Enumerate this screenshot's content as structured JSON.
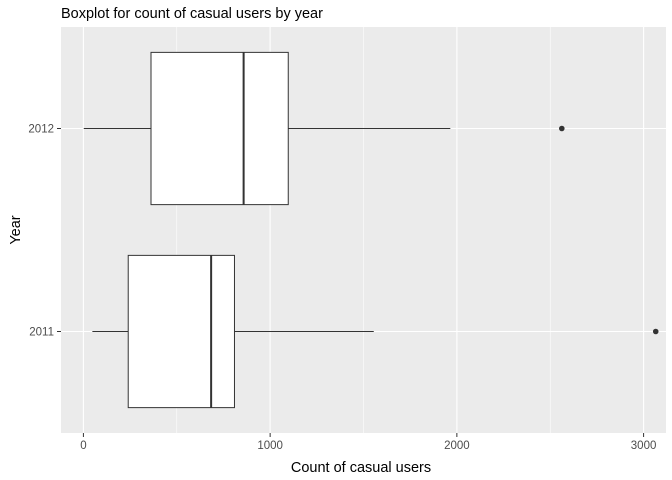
{
  "chart_data": {
    "type": "boxplot",
    "orientation": "horizontal",
    "title": "Boxplot for count of casual users by year",
    "xlabel": "Count of casual users",
    "ylabel": "Year",
    "xlim": [
      -120,
      3120
    ],
    "xticks": [
      0,
      1000,
      2000,
      3000
    ],
    "xtick_labels": [
      "0",
      "1000",
      "2000",
      "3000"
    ],
    "grid": true,
    "categories": [
      "2012",
      "2011"
    ],
    "boxes": [
      {
        "label": "2012",
        "whisker_low": 2,
        "q1": 362,
        "median": 858,
        "q3": 1097,
        "whisker_high": 1965,
        "outliers": [
          2562
        ]
      },
      {
        "label": "2011",
        "whisker_low": 48,
        "q1": 240,
        "median": 684,
        "q3": 809,
        "whisker_high": 1555,
        "outliers": [
          3065
        ]
      }
    ],
    "colors": {
      "panel": "#ebebeb",
      "grid_major": "#ffffff",
      "box_fill": "#ffffff",
      "box_stroke": "#333333"
    }
  }
}
